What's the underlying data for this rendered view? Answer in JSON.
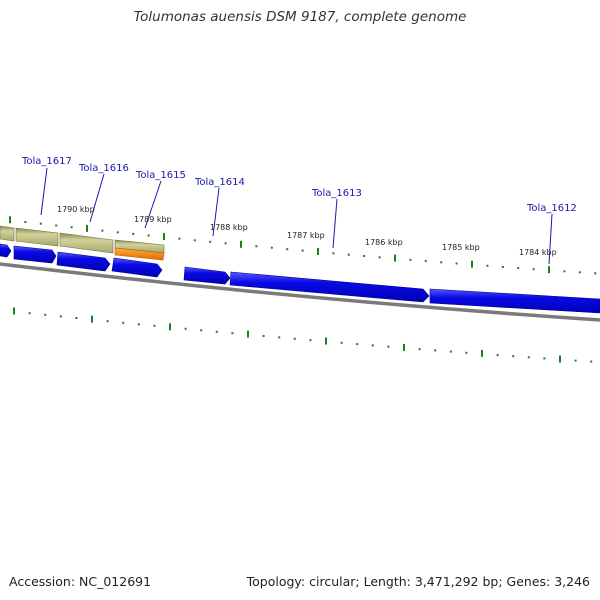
{
  "title": "Tolumonas auensis DSM 9187, complete genome",
  "footer": {
    "accession": "Accession: NC_012691",
    "stats": "Topology: circular; Length: 3,471,292 bp; Genes: 3,246"
  },
  "genes": [
    {
      "name": "Tola_1617"
    },
    {
      "name": "Tola_1616"
    },
    {
      "name": "Tola_1615"
    },
    {
      "name": "Tola_1614"
    },
    {
      "name": "Tola_1613"
    },
    {
      "name": "Tola_1612"
    }
  ],
  "kbp_labels": [
    "1790 kbp",
    "1789 kbp",
    "1788 kbp",
    "1787 kbp",
    "1786 kbp",
    "1785 kbp",
    "1784 kbp"
  ],
  "colors": {
    "cds": "#0a0ae6",
    "cds_edge": "#00008c",
    "feature_band": "#bdbd80",
    "highlight": "#ff8c00",
    "ticks": "#1e7f1e",
    "backbone": "#808080",
    "label_line": "#1a1aa8"
  }
}
